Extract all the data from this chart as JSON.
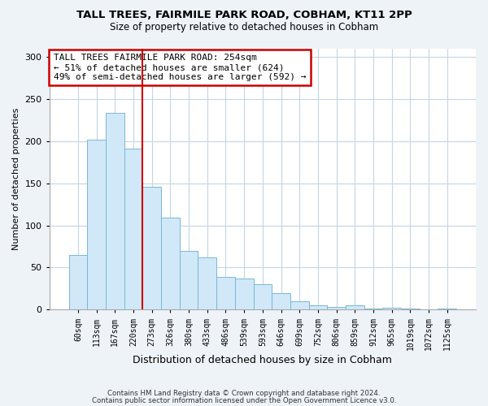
{
  "title": "TALL TREES, FAIRMILE PARK ROAD, COBHAM, KT11 2PP",
  "subtitle": "Size of property relative to detached houses in Cobham",
  "xlabel": "Distribution of detached houses by size in Cobham",
  "ylabel": "Number of detached properties",
  "categories": [
    "60sqm",
    "113sqm",
    "167sqm",
    "220sqm",
    "273sqm",
    "326sqm",
    "380sqm",
    "433sqm",
    "486sqm",
    "539sqm",
    "593sqm",
    "646sqm",
    "699sqm",
    "752sqm",
    "806sqm",
    "859sqm",
    "912sqm",
    "965sqm",
    "1019sqm",
    "1072sqm",
    "1125sqm"
  ],
  "values": [
    65,
    202,
    234,
    191,
    146,
    109,
    70,
    62,
    39,
    37,
    30,
    20,
    10,
    5,
    3,
    5,
    1,
    2,
    1,
    0,
    1
  ],
  "bar_color": "#d0e8f8",
  "bar_edge_color": "#7ab8d8",
  "vline_x": 3.5,
  "vline_color": "#cc0000",
  "ylim": [
    0,
    310
  ],
  "yticks": [
    0,
    50,
    100,
    150,
    200,
    250,
    300
  ],
  "annotation_title": "TALL TREES FAIRMILE PARK ROAD: 254sqm",
  "annotation_line1": "← 51% of detached houses are smaller (624)",
  "annotation_line2": "49% of semi-detached houses are larger (592) →",
  "annotation_box_color": "white",
  "annotation_box_edge_color": "#cc0000",
  "footer1": "Contains HM Land Registry data © Crown copyright and database right 2024.",
  "footer2": "Contains public sector information licensed under the Open Government Licence v3.0.",
  "background_color": "#eef3f8",
  "plot_bg_color": "white",
  "grid_color": "#c5d5e5"
}
